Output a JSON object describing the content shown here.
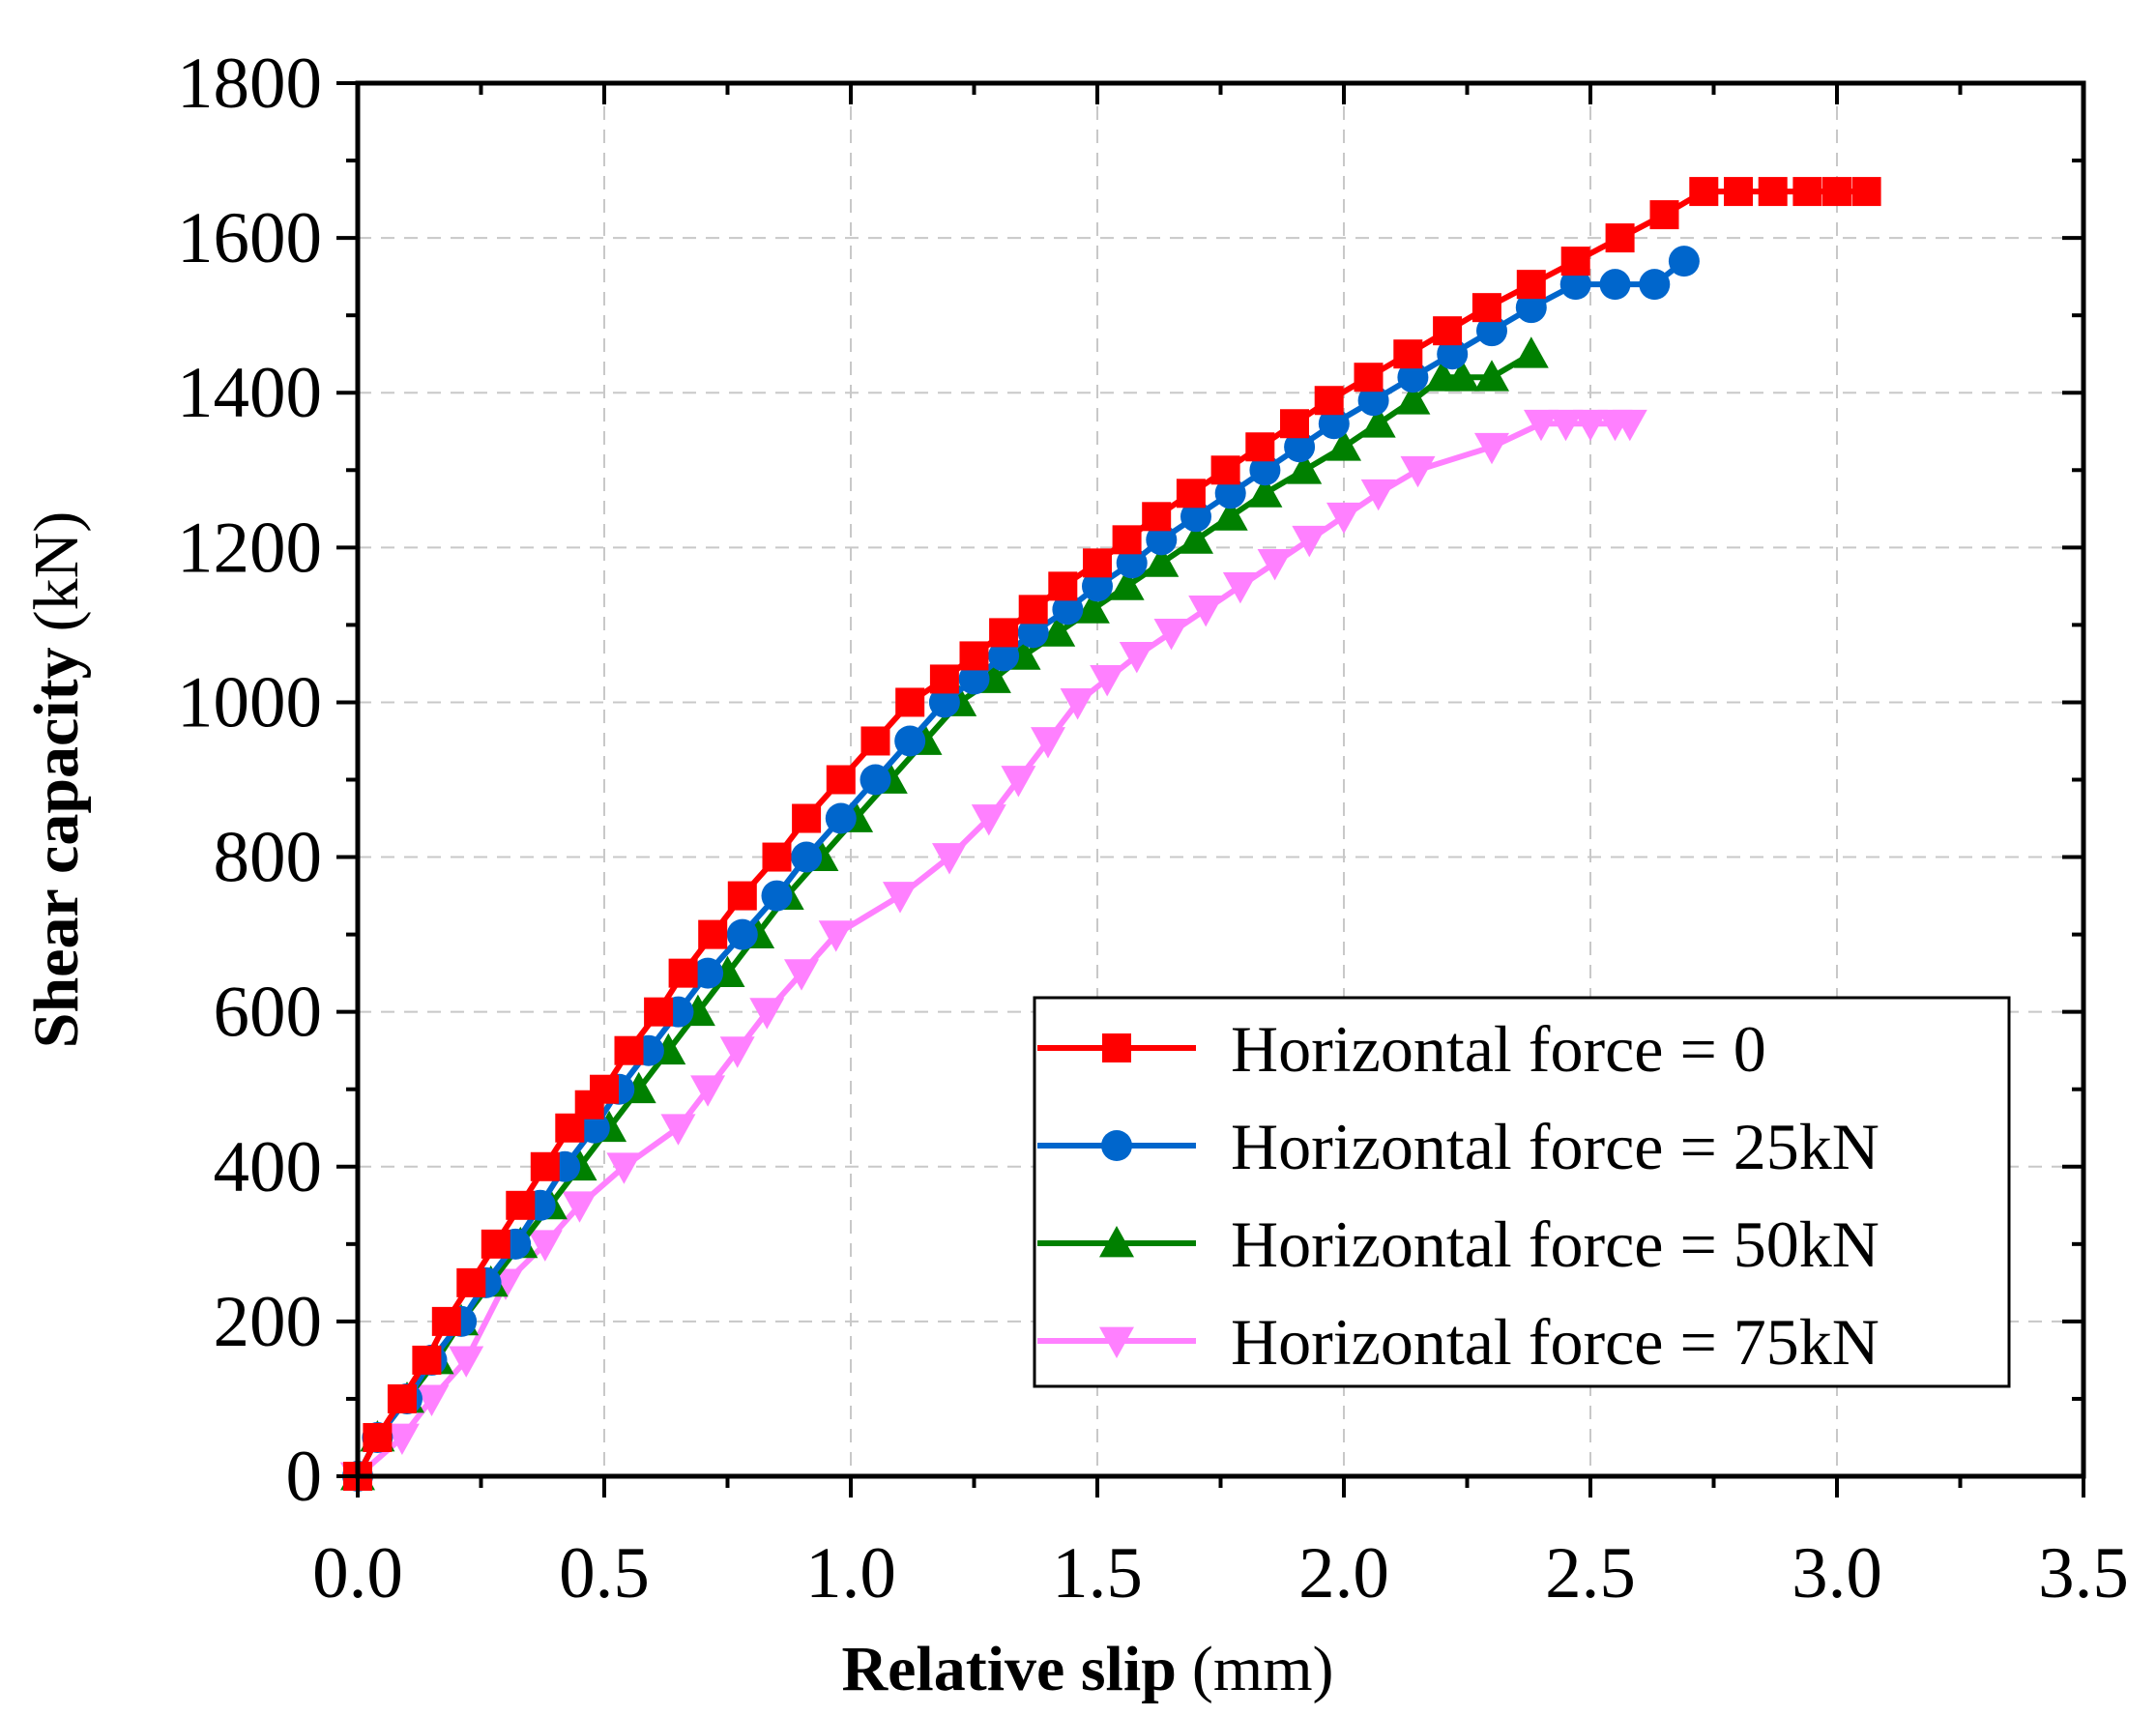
{
  "chart_data": {
    "type": "line",
    "title": "",
    "xlabel": {
      "bold": "Relative slip",
      "normal": "(mm)"
    },
    "ylabel": {
      "bold": "Shear capacity",
      "normal": "(kN)"
    },
    "xlim": [
      0,
      3.5
    ],
    "ylim": [
      0,
      1800
    ],
    "xticks": [
      0.0,
      0.5,
      1.0,
      1.5,
      2.0,
      2.5,
      3.0,
      3.5
    ],
    "xtick_labels": [
      "0.0",
      "0.5",
      "1.0",
      "1.5",
      "2.0",
      "2.5",
      "3.0",
      "3.5"
    ],
    "yticks": [
      0,
      200,
      400,
      600,
      800,
      1000,
      1200,
      1400,
      1600,
      1800
    ],
    "ytick_labels": [
      "0",
      "200",
      "400",
      "600",
      "800",
      "1000",
      "1200",
      "1400",
      "1600",
      "1800"
    ],
    "grid": true,
    "legend_position": "bottom-right",
    "series": [
      {
        "name": "Horizontal force = 0",
        "color": "#ff0000",
        "marker": "square",
        "x": [
          0,
          0.04,
          0.09,
          0.14,
          0.18,
          0.23,
          0.28,
          0.33,
          0.38,
          0.43,
          0.47,
          0.5,
          0.55,
          0.61,
          0.66,
          0.72,
          0.78,
          0.85,
          0.91,
          0.98,
          1.05,
          1.12,
          1.19,
          1.25,
          1.31,
          1.37,
          1.43,
          1.5,
          1.56,
          1.62,
          1.69,
          1.76,
          1.83,
          1.9,
          1.97,
          2.05,
          2.13,
          2.21,
          2.29,
          2.38,
          2.47,
          2.56,
          2.65,
          2.73,
          2.8,
          2.87,
          2.94,
          3.0,
          3.06
        ],
        "y": [
          0,
          50,
          100,
          150,
          200,
          250,
          300,
          350,
          400,
          450,
          480,
          500,
          550,
          600,
          650,
          700,
          750,
          800,
          850,
          900,
          950,
          1000,
          1030,
          1060,
          1090,
          1120,
          1150,
          1180,
          1210,
          1240,
          1270,
          1300,
          1330,
          1360,
          1390,
          1420,
          1450,
          1480,
          1510,
          1540,
          1570,
          1600,
          1630,
          1660,
          1660,
          1660,
          1660,
          1660,
          1660
        ]
      },
      {
        "name": "Horizontal force = 25kN",
        "color": "#0066cc",
        "marker": "circle",
        "x": [
          0,
          0.04,
          0.1,
          0.15,
          0.21,
          0.26,
          0.32,
          0.37,
          0.42,
          0.48,
          0.53,
          0.59,
          0.65,
          0.71,
          0.78,
          0.85,
          0.91,
          0.98,
          1.05,
          1.12,
          1.19,
          1.25,
          1.31,
          1.37,
          1.44,
          1.5,
          1.57,
          1.63,
          1.7,
          1.77,
          1.84,
          1.91,
          1.98,
          2.06,
          2.14,
          2.22,
          2.3,
          2.38,
          2.47,
          2.55,
          2.63,
          2.69
        ],
        "y": [
          0,
          50,
          100,
          150,
          200,
          250,
          300,
          350,
          400,
          450,
          500,
          550,
          600,
          650,
          700,
          750,
          800,
          850,
          900,
          950,
          1000,
          1030,
          1060,
          1090,
          1120,
          1150,
          1180,
          1210,
          1240,
          1270,
          1300,
          1330,
          1360,
          1390,
          1420,
          1450,
          1480,
          1510,
          1540,
          1540,
          1540,
          1570
        ]
      },
      {
        "name": "Horizontal force = 50kN",
        "color": "#008000",
        "marker": "triangle-up",
        "x": [
          0,
          0.04,
          0.1,
          0.16,
          0.21,
          0.27,
          0.33,
          0.39,
          0.45,
          0.51,
          0.57,
          0.63,
          0.69,
          0.75,
          0.81,
          0.87,
          0.94,
          1.01,
          1.08,
          1.15,
          1.22,
          1.29,
          1.35,
          1.42,
          1.49,
          1.56,
          1.63,
          1.7,
          1.77,
          1.84,
          1.92,
          2.0,
          2.07,
          2.14,
          2.2,
          2.24,
          2.3,
          2.38
        ],
        "y": [
          0,
          50,
          100,
          150,
          200,
          250,
          300,
          350,
          400,
          450,
          500,
          550,
          600,
          650,
          700,
          750,
          800,
          850,
          900,
          950,
          1000,
          1030,
          1060,
          1090,
          1120,
          1150,
          1180,
          1210,
          1240,
          1270,
          1300,
          1330,
          1360,
          1390,
          1420,
          1420,
          1420,
          1450
        ]
      },
      {
        "name": "Horizontal force = 75kN",
        "color": "#ff80ff",
        "marker": "triangle-down",
        "x": [
          0,
          0.09,
          0.15,
          0.22,
          0.3,
          0.38,
          0.45,
          0.54,
          0.65,
          0.71,
          0.77,
          0.83,
          0.9,
          0.97,
          1.1,
          1.2,
          1.28,
          1.34,
          1.4,
          1.46,
          1.52,
          1.58,
          1.65,
          1.72,
          1.79,
          1.86,
          1.93,
          2.0,
          2.07,
          2.15,
          2.3,
          2.4,
          2.45,
          2.5,
          2.55,
          2.58
        ],
        "y": [
          0,
          50,
          100,
          150,
          250,
          300,
          350,
          400,
          450,
          500,
          550,
          600,
          650,
          700,
          750,
          800,
          850,
          900,
          950,
          1000,
          1030,
          1060,
          1090,
          1120,
          1150,
          1180,
          1210,
          1240,
          1270,
          1300,
          1330,
          1360,
          1360,
          1360,
          1360,
          1360
        ]
      }
    ]
  }
}
